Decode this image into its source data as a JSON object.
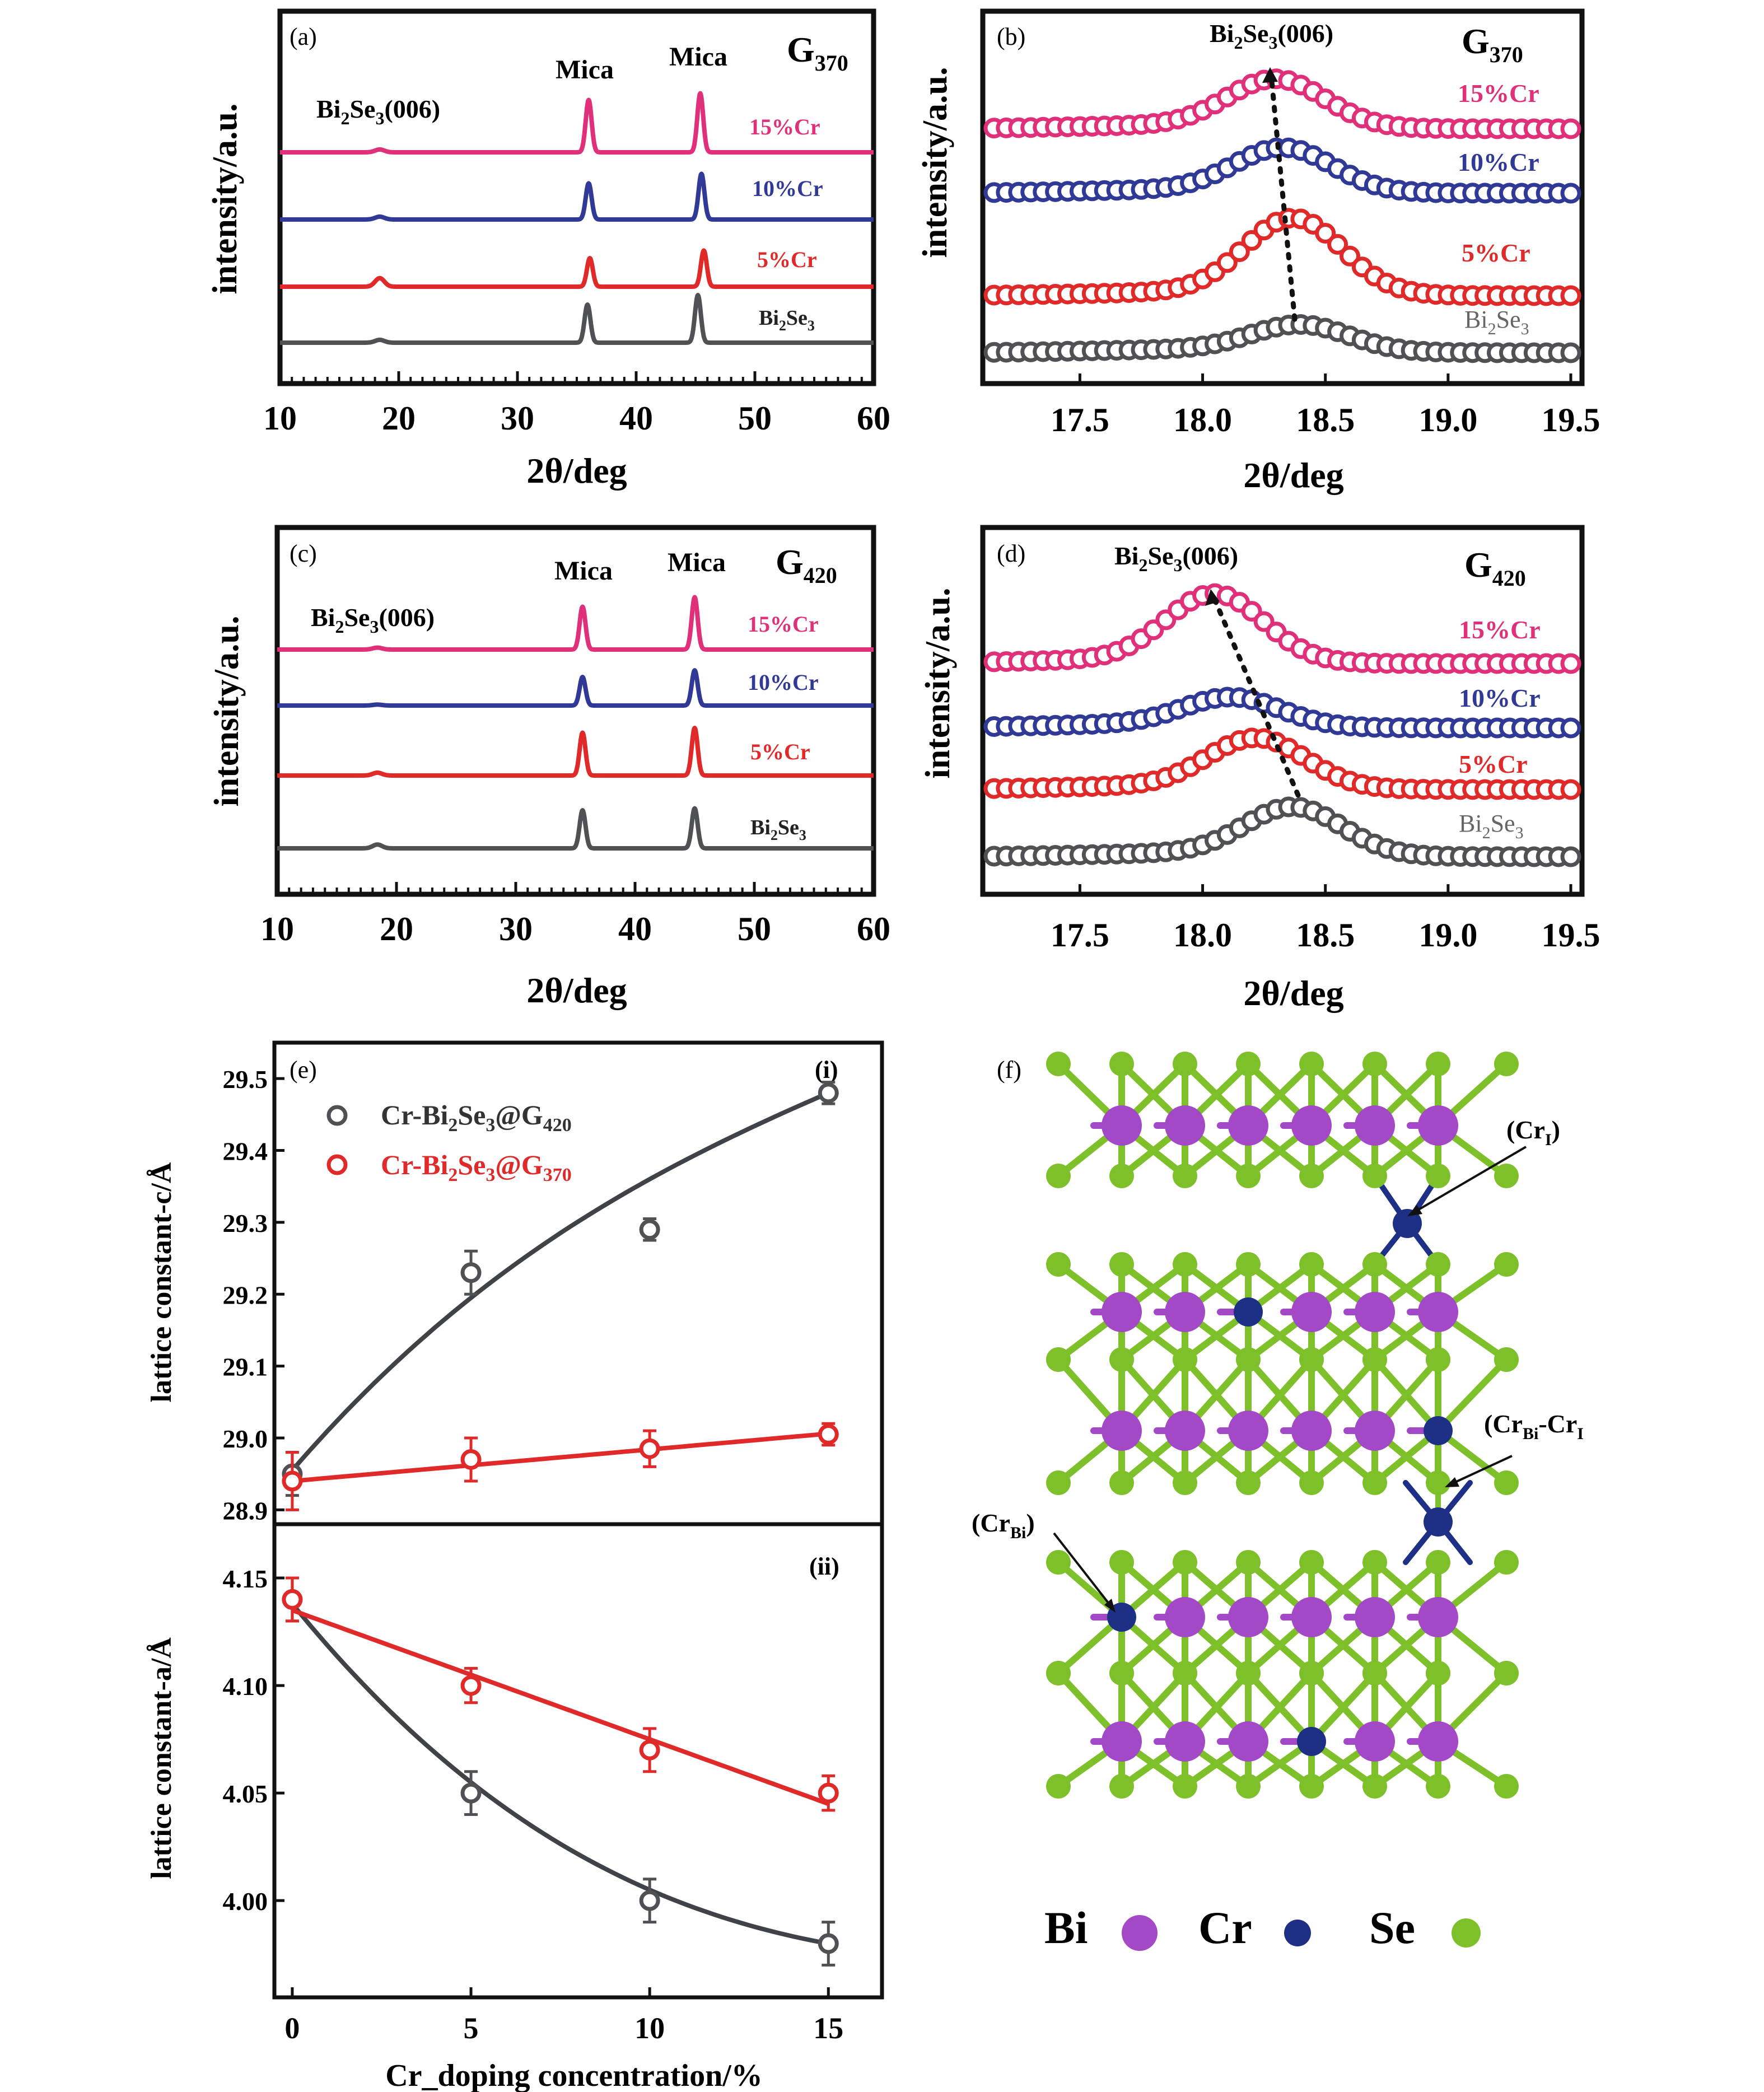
{
  "colors": {
    "pink": "#E0307A",
    "blue": "#303A96",
    "red": "#E02A2A",
    "gray": "#4F5154",
    "fit_gray": "#3F4347",
    "axis": "#111111",
    "atom_bi": "#A348C6",
    "atom_cr": "#1E2F86",
    "atom_se": "#7DC02A",
    "bond_bi": "#A348C6",
    "bond_se": "#7DC02A"
  },
  "chart_data": [
    {
      "id": "a",
      "panel_label": "(a)",
      "type": "line",
      "tag": {
        "base": "G",
        "sub": "370"
      },
      "xlabel": "2θ/deg",
      "ylabel": "intensity/a.u.",
      "xlim": [
        10,
        60
      ],
      "xticks": [
        "10",
        "20",
        "30",
        "40",
        "50",
        "60"
      ],
      "peak_label": {
        "pre": "Bi",
        "s1": "2",
        "mid": "Se",
        "s2": "3",
        "post": "(006)"
      },
      "annotations": [
        "Mica",
        "Mica"
      ],
      "peaks": [
        18.4,
        36.0,
        45.4
      ],
      "series": [
        {
          "name": "15%Cr",
          "color": "pink",
          "peak_heights": [
            0.03,
            0.55,
            0.62
          ],
          "peak_x": [
            18.4,
            36.0,
            45.4
          ]
        },
        {
          "name": "10%Cr",
          "color": "blue",
          "peak_heights": [
            0.03,
            0.38,
            0.48
          ],
          "peak_x": [
            18.4,
            36.0,
            45.5
          ]
        },
        {
          "name": "5%Cr",
          "color": "red",
          "peak_heights": [
            0.09,
            0.3,
            0.38
          ],
          "peak_x": [
            18.4,
            36.1,
            45.7
          ]
        },
        {
          "name": "Bi₂Se₃",
          "name_parts": {
            "pre": "Bi",
            "s1": "2",
            "mid": "Se",
            "s2": "3"
          },
          "color": "gray",
          "peak_heights": [
            0.03,
            0.4,
            0.5
          ],
          "peak_x": [
            18.4,
            35.9,
            45.2
          ]
        }
      ]
    },
    {
      "id": "b",
      "panel_label": "(b)",
      "type": "line",
      "tag": {
        "base": "G",
        "sub": "370"
      },
      "xlabel": "2θ/deg",
      "ylabel": "intensity/a.u.",
      "xlim": [
        17.15,
        19.5
      ],
      "xticks": [
        "17.5",
        "18.0",
        "18.5",
        "19.0",
        "19.5"
      ],
      "xtick_values": [
        17.5,
        18.0,
        18.5,
        19.0,
        19.5
      ],
      "peak_label": {
        "pre": "Bi",
        "s1": "2",
        "mid": "Se",
        "s2": "3",
        "post": "(006)"
      },
      "series": [
        {
          "name": "15%Cr",
          "color": "pink",
          "center": 18.3,
          "amp": 0.55
        },
        {
          "name": "10%Cr",
          "color": "blue",
          "center": 18.33,
          "amp": 0.5
        },
        {
          "name": "5%Cr",
          "color": "red",
          "center": 18.37,
          "amp": 0.87
        },
        {
          "name": "Bi₂Se₃",
          "name_parts": {
            "pre": "Bi",
            "s1": "2",
            "mid": "Se",
            "s2": "3"
          },
          "color": "gray",
          "center": 18.4,
          "amp": 0.3
        }
      ]
    },
    {
      "id": "c",
      "panel_label": "(c)",
      "type": "line",
      "tag": {
        "base": "G",
        "sub": "420"
      },
      "xlabel": "2θ/deg",
      "ylabel": "intensity/a.u.",
      "xlim": [
        10,
        60
      ],
      "xticks": [
        "10",
        "20",
        "30",
        "40",
        "50",
        "60"
      ],
      "peak_label": {
        "pre": "Bi",
        "s1": "2",
        "mid": "Se",
        "s2": "3",
        "post": "(006)"
      },
      "annotations": [
        "Mica",
        "Mica"
      ],
      "series": [
        {
          "name": "15%Cr",
          "color": "pink",
          "peak_heights": [
            0.02,
            0.45,
            0.55
          ],
          "peak_x": [
            18.4,
            35.6,
            45.0
          ]
        },
        {
          "name": "10%Cr",
          "color": "blue",
          "peak_heights": [
            0.01,
            0.3,
            0.37
          ],
          "peak_x": [
            18.4,
            35.6,
            45.0
          ]
        },
        {
          "name": "5%Cr",
          "color": "red",
          "peak_heights": [
            0.03,
            0.45,
            0.5
          ],
          "peak_x": [
            18.4,
            35.6,
            45.0
          ]
        },
        {
          "name": "Bi₂Se₃",
          "name_parts": {
            "pre": "Bi",
            "s1": "2",
            "mid": "Se",
            "s2": "3"
          },
          "color": "gray",
          "peak_heights": [
            0.04,
            0.4,
            0.42
          ],
          "peak_x": [
            18.4,
            35.6,
            45.0
          ]
        }
      ]
    },
    {
      "id": "d",
      "panel_label": "(d)",
      "type": "line",
      "tag": {
        "base": "G",
        "sub": "420"
      },
      "xlabel": "2θ/deg",
      "ylabel": "intensity/a.u.",
      "xlim": [
        17.15,
        19.5
      ],
      "xticks": [
        "17.5",
        "18.0",
        "18.5",
        "19.0",
        "19.5"
      ],
      "xtick_values": [
        17.5,
        18.0,
        18.5,
        19.0,
        19.5
      ],
      "peak_label": {
        "pre": "Bi",
        "s1": "2",
        "mid": "Se",
        "s2": "3",
        "post": "(006)"
      },
      "series": [
        {
          "name": "15%Cr",
          "color": "pink",
          "center": 18.05,
          "amp": 0.78
        },
        {
          "name": "10%Cr",
          "color": "blue",
          "center": 18.12,
          "amp": 0.33
        },
        {
          "name": "5%Cr",
          "color": "red",
          "center": 18.22,
          "amp": 0.57
        },
        {
          "name": "Bi₂Se₃",
          "name_parts": {
            "pre": "Bi",
            "s1": "2",
            "mid": "Se",
            "s2": "3"
          },
          "color": "gray",
          "center": 18.37,
          "amp": 0.55
        }
      ]
    },
    {
      "id": "e",
      "panel_label": "(e)",
      "type": "scatter",
      "xlabel": "Cr_doping concentration/%",
      "x": [
        0,
        5,
        10,
        15
      ],
      "xticks": [
        "0",
        "5",
        "10",
        "15"
      ],
      "xlim": [
        -0.5,
        16.5
      ],
      "subplots": [
        {
          "label": "(i)",
          "ylabel": "lattice constant-c/Å",
          "ylim": [
            28.88,
            29.55
          ],
          "yticks": [
            "28.9",
            "29.0",
            "29.1",
            "29.2",
            "29.3",
            "29.4",
            "29.5"
          ],
          "ytick_values": [
            28.9,
            29.0,
            29.1,
            29.2,
            29.3,
            29.4,
            29.5
          ],
          "legend": [
            {
              "base": "Cr-Bi",
              "s1": "2",
              "mid": "Se",
              "s2": "3",
              "mid2": "@G",
              "s3": "420",
              "color": "gray"
            },
            {
              "base": "Cr-Bi",
              "s1": "2",
              "mid": "Se",
              "s2": "3",
              "mid2": "@G",
              "s3": "370",
              "color": "red"
            }
          ],
          "series": [
            {
              "name": "Cr-Bi2Se3@G420",
              "color": "gray",
              "y": [
                28.95,
                29.23,
                29.29,
                29.48
              ],
              "err": [
                0.03,
                0.03,
                0.015,
                0.015
              ],
              "fit": [
                28.955,
                29.195,
                29.36,
                29.48
              ]
            },
            {
              "name": "Cr-Bi2Se3@G370",
              "color": "red",
              "y": [
                28.94,
                28.97,
                28.985,
                29.005
              ],
              "err": [
                0.04,
                0.03,
                0.025,
                0.015
              ],
              "fit": [
                28.94,
                28.962,
                28.984,
                29.006
              ]
            }
          ]
        },
        {
          "label": "(ii)",
          "ylabel": "lattice constant-a/Å",
          "ylim": [
            3.955,
            4.175
          ],
          "yticks": [
            "4.00",
            "4.05",
            "4.10",
            "4.15"
          ],
          "ytick_values": [
            4.0,
            4.05,
            4.1,
            4.15
          ],
          "series": [
            {
              "name": "Cr-Bi2Se3@G420",
              "color": "gray",
              "y": [
                4.14,
                4.05,
                4.0,
                3.98
              ],
              "err": [
                0.01,
                0.01,
                0.01,
                0.01
              ],
              "fit": [
                4.138,
                4.055,
                4.005,
                3.98
              ]
            },
            {
              "name": "Cr-Bi2Se3@G370",
              "color": "red",
              "y": [
                4.14,
                4.1,
                4.07,
                4.05
              ],
              "err": [
                0.01,
                0.008,
                0.01,
                0.008
              ],
              "fit": [
                4.135,
                4.105,
                4.075,
                4.045
              ]
            }
          ]
        }
      ]
    }
  ],
  "structure": {
    "panel_label": "(f)",
    "labels": {
      "cr_i": {
        "base": "(Cr",
        "sub": "I",
        "post": ")"
      },
      "cr_bi_cr_i": {
        "base": "(Cr",
        "sub": "Bi",
        "mid": "-Cr",
        "sub2": "I",
        "post": ""
      },
      "cr_bi": {
        "base": "(Cr",
        "sub": "Bi",
        "post": ")"
      }
    },
    "legend": [
      {
        "symbol": "Bi",
        "atom": "atom_bi"
      },
      {
        "symbol": "Cr",
        "atom": "atom_cr"
      },
      {
        "symbol": "Se",
        "atom": "atom_se"
      }
    ]
  }
}
